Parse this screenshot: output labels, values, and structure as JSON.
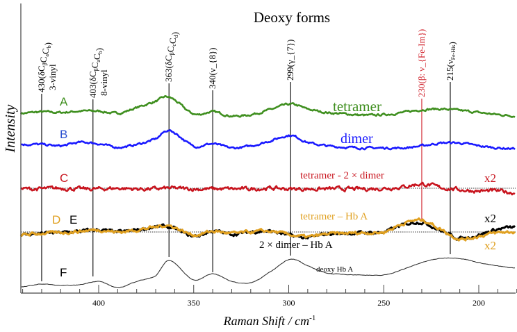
{
  "chart_data": {
    "type": "line",
    "title": "Deoxy forms",
    "xlabel": "Raman Shift / cm",
    "xlabel_sup": "-1",
    "ylabel": "Intensity",
    "xlim": [
      441,
      181
    ],
    "ylim": [
      1,
      42
    ],
    "xticks": [
      400,
      350,
      300,
      250,
      200
    ],
    "x": [
      440,
      430,
      420,
      410,
      400,
      390,
      380,
      370,
      363,
      350,
      340,
      330,
      320,
      310,
      299,
      290,
      280,
      270,
      260,
      250,
      240,
      230,
      220,
      210,
      200,
      190,
      180
    ],
    "series": [
      {
        "id": "A",
        "name": "tetramer",
        "color": "#3f8f1f",
        "noise": 0.12,
        "values": [
          26.9,
          27.1,
          27.0,
          27.2,
          27.2,
          26.9,
          27.7,
          28.6,
          29.2,
          26.8,
          27.1,
          26.5,
          26.7,
          27.4,
          28.2,
          27.5,
          27.0,
          26.8,
          26.6,
          26.7,
          27.0,
          27.4,
          27.5,
          27.3,
          27.0,
          26.7,
          26.5
        ]
      },
      {
        "id": "B",
        "name": "dimer",
        "color": "#1a1aff",
        "noise": 0.12,
        "values": [
          22.4,
          22.4,
          22.2,
          22.7,
          22.5,
          22.0,
          22.4,
          23.2,
          24.4,
          22.2,
          22.5,
          21.9,
          22.2,
          22.9,
          23.7,
          22.7,
          22.2,
          22.0,
          21.9,
          21.9,
          21.9,
          22.2,
          22.6,
          22.6,
          22.2,
          21.9,
          21.8
        ]
      },
      {
        "id": "C",
        "name": "tetramer - 2 × dimer",
        "scale_note": "x2",
        "color": "#c8141e",
        "noise": 0.22,
        "values": [
          16.0,
          16.0,
          16.1,
          16.0,
          16.0,
          16.1,
          16.0,
          16.0,
          16.1,
          16.0,
          16.0,
          16.0,
          16.0,
          16.1,
          16.0,
          16.0,
          16.0,
          16.0,
          16.0,
          16.1,
          16.3,
          16.7,
          16.2,
          15.9,
          15.7,
          15.7,
          15.4
        ]
      },
      {
        "id": "E",
        "name": "2 × dimer – Hb A",
        "scale_note": "x2",
        "color": "#000000",
        "noise": 0.18,
        "values": [
          9.4,
          9.6,
          9.7,
          9.9,
          10.1,
          9.8,
          10.1,
          10.5,
          10.5,
          9.2,
          9.9,
          9.5,
          9.8,
          9.9,
          9.3,
          9.0,
          9.5,
          9.6,
          9.7,
          9.8,
          10.8,
          11.2,
          10.0,
          8.9,
          9.4,
          10.2,
          10.5
        ]
      },
      {
        "id": "D",
        "name": "tetramer – Hb A",
        "scale_note": "x2",
        "color": "#e0a020",
        "noise": 0.18,
        "values": [
          9.4,
          9.6,
          9.7,
          9.9,
          10.1,
          9.8,
          10.1,
          10.5,
          10.7,
          9.4,
          9.9,
          9.6,
          9.8,
          9.9,
          9.4,
          9.1,
          9.5,
          9.6,
          9.7,
          9.8,
          11.0,
          11.5,
          10.2,
          8.8,
          9.2,
          9.7,
          9.8
        ]
      },
      {
        "id": "F",
        "name": "deoxy Hb A",
        "color": "#333333",
        "noise": 0.03,
        "values": [
          1.9,
          2.3,
          2.1,
          2.2,
          2.7,
          1.8,
          2.7,
          3.5,
          5.7,
          2.9,
          3.8,
          2.7,
          2.5,
          4.0,
          5.9,
          4.9,
          3.9,
          3.7,
          3.6,
          3.6,
          4.4,
          5.4,
          6.0,
          6.0,
          5.4,
          4.9,
          4.6
        ]
      }
    ],
    "reference_baselines": [
      16.1,
      9.8
    ],
    "peak_markers": [
      {
        "x": 430,
        "label": "430(δC_{β}C_{a}C_{b})",
        "label2": "3-vinyl",
        "color": "#000000"
      },
      {
        "x": 403,
        "label": "403(δC_{β}C_{a}C_{b})",
        "label2": "8-vinyl",
        "color": "#000000"
      },
      {
        "x": 363,
        "label": "363(δC_{β}C_{c}C_{d})",
        "color": "#000000"
      },
      {
        "x": 340,
        "label": "340(ν_{8})",
        "color": "#000000"
      },
      {
        "x": 299,
        "label": "299(γ_{7})",
        "color": "#000000"
      },
      {
        "x": 230,
        "label": "230(β: ν_{Fe-Im})",
        "color": "#d0202a"
      },
      {
        "x": 215,
        "label": "215(ν_{Fe-His})",
        "color": "#000000"
      }
    ]
  },
  "annotations": {
    "A": "A",
    "B": "B",
    "C": "C",
    "D": "D",
    "E": "E",
    "F": "F",
    "tetramer": "tetramer",
    "dimer": "dimer",
    "c_desc": "tetramer - 2 × dimer",
    "c_x2": "x2",
    "d_desc": "tetramer – Hb A",
    "e_x2": "x2",
    "e_desc": "2 × dimer – Hb A",
    "d_x2": "x2",
    "f_desc": "deoxy Hb A"
  }
}
